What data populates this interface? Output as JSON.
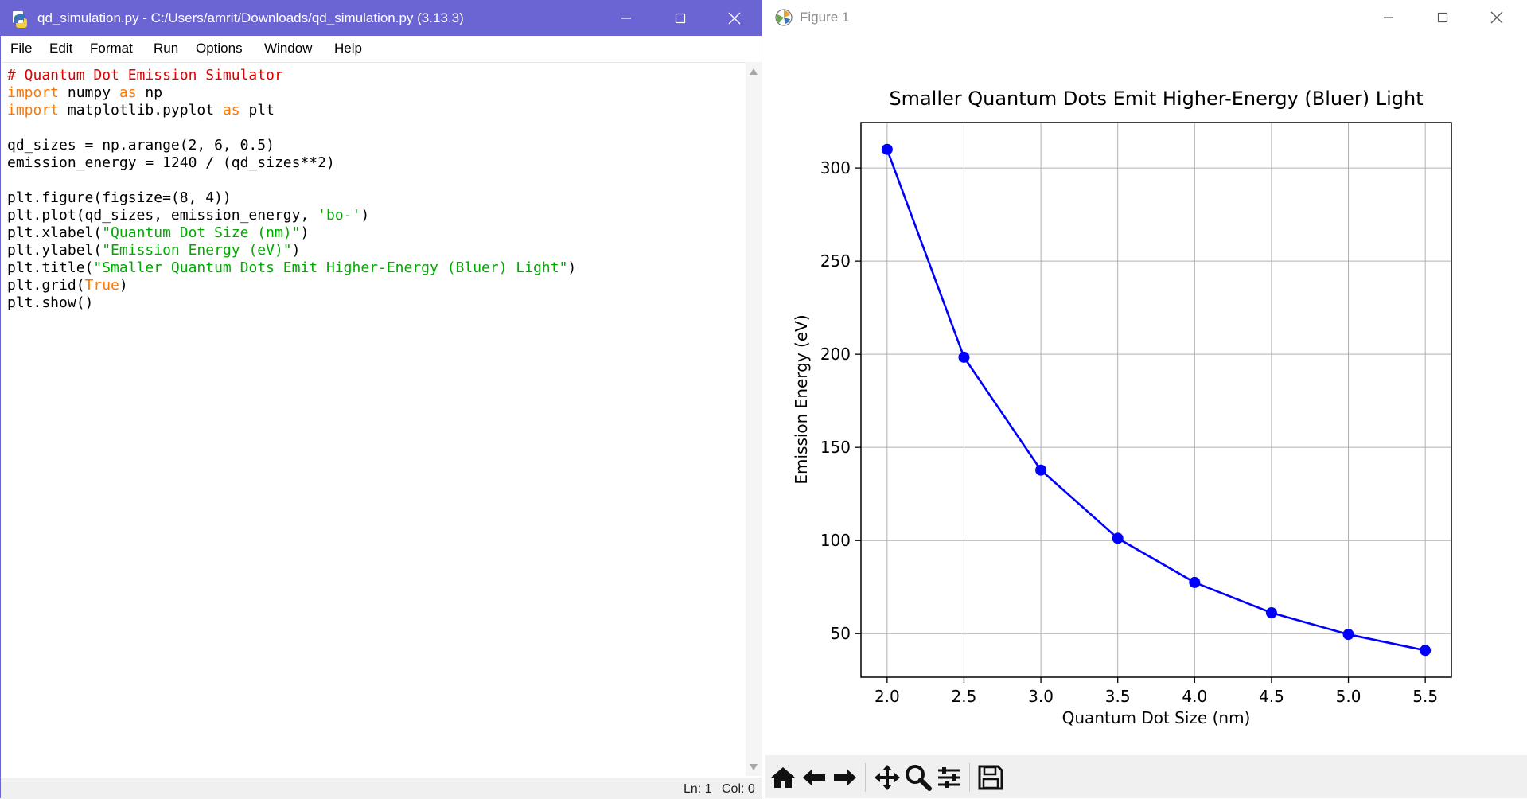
{
  "idle": {
    "title": "qd_simulation.py - C:/Users/amrit/Downloads/qd_simulation.py (3.13.3)",
    "menu": [
      "File",
      "Edit",
      "Format",
      "Run",
      "Options",
      "Window",
      "Help"
    ],
    "code_lines": [
      [
        {
          "t": "# Quantum Dot Emission Simulator",
          "c": "comment"
        }
      ],
      [
        {
          "t": "import",
          "c": "kw"
        },
        {
          "t": " numpy "
        },
        {
          "t": "as",
          "c": "kw"
        },
        {
          "t": " np"
        }
      ],
      [
        {
          "t": "import",
          "c": "kw"
        },
        {
          "t": " matplotlib.pyplot "
        },
        {
          "t": "as",
          "c": "kw"
        },
        {
          "t": " plt"
        }
      ],
      [],
      [
        {
          "t": "qd_sizes = np.arange(2, 6, 0.5)"
        }
      ],
      [
        {
          "t": "emission_energy = 1240 / (qd_sizes**2)"
        }
      ],
      [],
      [
        {
          "t": "plt.figure(figsize=(8, 4))"
        }
      ],
      [
        {
          "t": "plt.plot(qd_sizes, emission_energy, "
        },
        {
          "t": "'bo-'",
          "c": "str"
        },
        {
          "t": ")"
        }
      ],
      [
        {
          "t": "plt.xlabel("
        },
        {
          "t": "\"Quantum Dot Size (nm)\"",
          "c": "str"
        },
        {
          "t": ")"
        }
      ],
      [
        {
          "t": "plt.ylabel("
        },
        {
          "t": "\"Emission Energy (eV)\"",
          "c": "str"
        },
        {
          "t": ")"
        }
      ],
      [
        {
          "t": "plt.title("
        },
        {
          "t": "\"Smaller Quantum Dots Emit Higher-Energy (Bluer) Light\"",
          "c": "str"
        },
        {
          "t": ")"
        }
      ],
      [
        {
          "t": "plt.grid("
        },
        {
          "t": "True",
          "c": "kw"
        },
        {
          "t": ")"
        }
      ],
      [
        {
          "t": "plt.show()"
        }
      ]
    ],
    "status": {
      "line": "Ln: 1",
      "col": "Col: 0"
    },
    "colors": {
      "titlebar": "#6b65d3",
      "comment": "#dd0000",
      "keyword": "#ff7700",
      "string": "#00aa00"
    }
  },
  "figure": {
    "title": "Figure 1",
    "toolbar_icons": [
      "home-icon",
      "back-arrow-icon",
      "forward-arrow-icon",
      "pan-icon",
      "zoom-icon",
      "configure-subplots-icon",
      "save-icon"
    ]
  },
  "chart_data": {
    "type": "line",
    "title": "Smaller Quantum Dots Emit Higher-Energy (Bluer) Light",
    "xlabel": "Quantum Dot Size (nm)",
    "ylabel": "Emission Energy (eV)",
    "x": [
      2.0,
      2.5,
      3.0,
      3.5,
      4.0,
      4.5,
      5.0,
      5.5
    ],
    "series": [
      {
        "values": [
          310.0,
          198.4,
          137.8,
          101.2,
          77.5,
          61.2,
          49.6,
          41.0
        ],
        "color": "#0000ff",
        "marker": "o"
      }
    ],
    "xticks": [
      "2.0",
      "2.5",
      "3.0",
      "3.5",
      "4.0",
      "4.5",
      "5.0",
      "5.5"
    ],
    "yticks": [
      "50",
      "100",
      "150",
      "200",
      "250",
      "300"
    ],
    "xlim": [
      1.83,
      5.67
    ],
    "ylim": [
      26.6,
      324.4
    ],
    "grid": true
  }
}
